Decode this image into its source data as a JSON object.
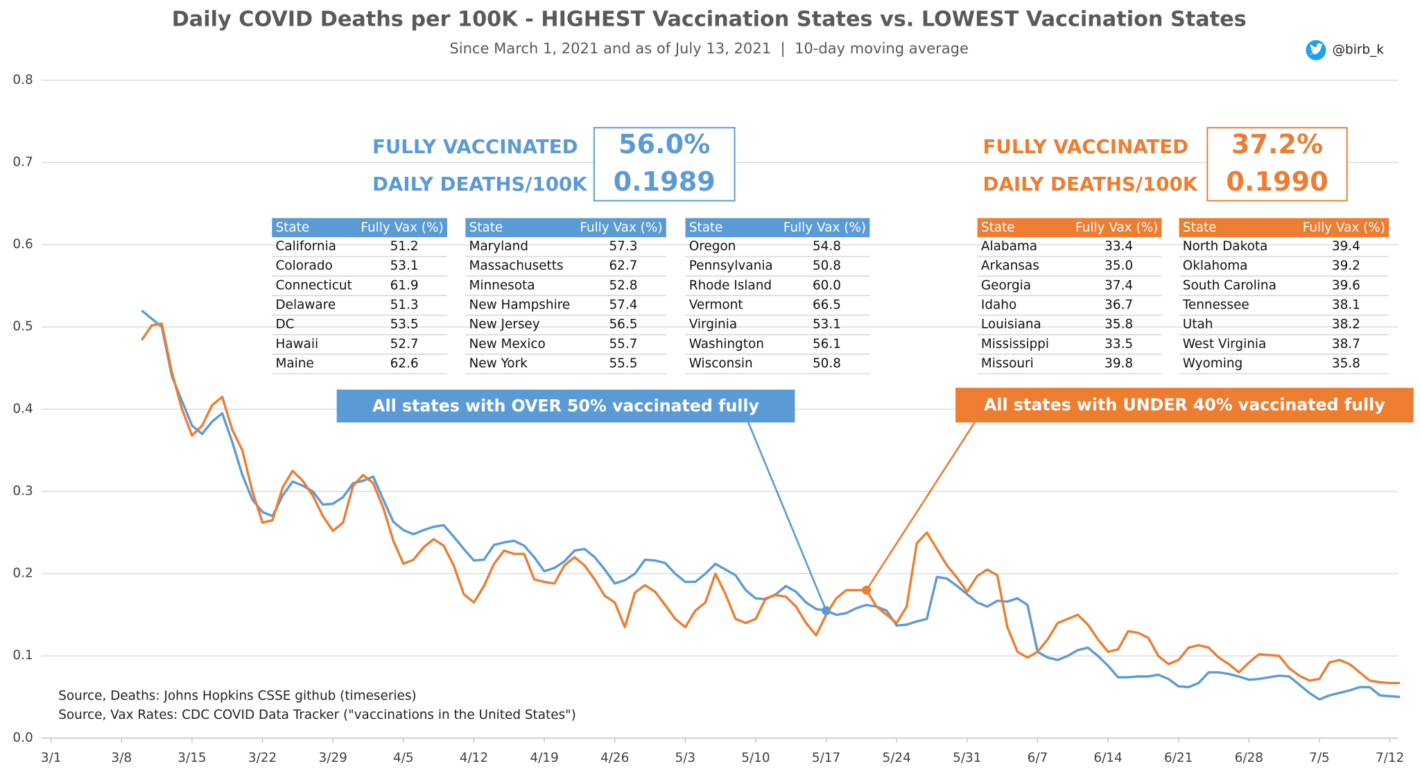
{
  "chart_data": {
    "type": "line",
    "title": "Daily COVID Deaths per 100K - HIGHEST Vaccination States vs. LOWEST Vaccination States",
    "subtitle": "Since March 1, 2021 and as of July 13, 2021  |  10-day moving average",
    "handle": "@birb_k",
    "sources": [
      "Source, Deaths: Johns Hopkins CSSE github (timeseries)",
      "Source, Vax Rates: CDC COVID Data Tracker (\"vaccinations in the United States\")"
    ],
    "ylim": [
      0,
      0.8
    ],
    "yticks": [
      {
        "value": 0,
        "label": "0.0"
      },
      0.1,
      0.2,
      0.3,
      0.4,
      0.5,
      0.6,
      0.7,
      0.8
    ],
    "grid": true,
    "categories": [
      "3/1",
      null,
      null,
      null,
      null,
      null,
      null,
      "3/8",
      null,
      null,
      null,
      null,
      null,
      null,
      "3/15",
      null,
      null,
      null,
      null,
      null,
      null,
      "3/22",
      null,
      null,
      null,
      null,
      null,
      null,
      "3/29",
      null,
      null,
      null,
      null,
      null,
      null,
      "4/5",
      null,
      null,
      null,
      null,
      null,
      null,
      "4/12",
      null,
      null,
      null,
      null,
      null,
      null,
      "4/19",
      null,
      null,
      null,
      null,
      null,
      null,
      "4/26",
      null,
      null,
      null,
      null,
      null,
      null,
      "5/3",
      null,
      null,
      null,
      null,
      null,
      null,
      "5/10",
      null,
      null,
      null,
      null,
      null,
      null,
      "5/17",
      null,
      null,
      null,
      null,
      null,
      null,
      "5/24",
      null,
      null,
      null,
      null,
      null,
      null,
      "5/31",
      null,
      null,
      null,
      null,
      null,
      null,
      "6/7",
      null,
      null,
      null,
      null,
      null,
      null,
      "6/14",
      null,
      null,
      null,
      null,
      null,
      null,
      "6/21",
      null,
      null,
      null,
      null,
      null,
      null,
      "6/28",
      null,
      null,
      null,
      null,
      null,
      null,
      "7/5",
      null,
      null,
      null,
      null,
      null,
      null,
      "7/12",
      null
    ],
    "series": [
      {
        "name": "All states with OVER 50% vaccinated fully",
        "color": "#5b9bd5",
        "values": [
          null,
          null,
          null,
          null,
          null,
          null,
          null,
          null,
          null,
          0.52,
          0.51,
          0.5,
          0.44,
          0.41,
          0.38,
          0.37,
          0.385,
          0.395,
          0.36,
          0.32,
          0.29,
          0.275,
          0.27,
          0.295,
          0.312,
          0.307,
          0.3,
          0.284,
          0.285,
          0.293,
          0.31,
          0.313,
          0.318,
          0.29,
          0.263,
          0.253,
          0.248,
          0.253,
          0.257,
          0.259,
          0.245,
          0.23,
          0.216,
          0.217,
          0.235,
          0.238,
          0.24,
          0.234,
          0.22,
          0.203,
          0.207,
          0.215,
          0.228,
          0.23,
          0.22,
          0.205,
          0.188,
          0.192,
          0.2,
          0.217,
          0.216,
          0.213,
          0.2,
          0.19,
          0.19,
          0.2,
          0.212,
          0.205,
          0.198,
          0.18,
          0.17,
          0.169,
          0.175,
          0.185,
          0.178,
          0.165,
          0.157,
          0.155,
          0.15,
          0.152,
          0.158,
          0.162,
          0.16,
          0.155,
          0.137,
          0.138,
          0.142,
          0.145,
          0.196,
          0.194,
          0.185,
          0.175,
          0.165,
          0.16,
          0.167,
          0.166,
          0.17,
          0.162,
          0.105,
          0.098,
          0.095,
          0.1,
          0.107,
          0.11,
          0.1,
          0.088,
          0.074,
          0.074,
          0.075,
          0.075,
          0.077,
          0.072,
          0.063,
          0.062,
          0.067,
          0.08,
          0.08,
          0.078,
          0.075,
          0.071,
          0.072,
          0.074,
          0.076,
          0.075,
          0.065,
          0.055,
          0.047,
          0.052,
          0.055,
          0.058,
          0.062,
          0.062,
          0.052,
          0.051,
          0.05
        ]
      },
      {
        "name": "All states with UNDER 40% vaccinated fully",
        "color": "#ed7d31",
        "values": [
          null,
          null,
          null,
          null,
          null,
          null,
          null,
          null,
          null,
          0.484,
          0.502,
          0.504,
          0.445,
          0.4,
          0.368,
          0.38,
          0.405,
          0.415,
          0.375,
          0.35,
          0.3,
          0.262,
          0.265,
          0.305,
          0.325,
          0.313,
          0.295,
          0.27,
          0.252,
          0.262,
          0.307,
          0.32,
          0.31,
          0.28,
          0.24,
          0.212,
          0.217,
          0.232,
          0.242,
          0.234,
          0.21,
          0.175,
          0.165,
          0.185,
          0.212,
          0.228,
          0.224,
          0.224,
          0.193,
          0.19,
          0.188,
          0.21,
          0.22,
          0.21,
          0.193,
          0.173,
          0.165,
          0.135,
          0.177,
          0.186,
          0.178,
          0.162,
          0.145,
          0.135,
          0.155,
          0.165,
          0.2,
          0.175,
          0.145,
          0.14,
          0.145,
          0.17,
          0.174,
          0.172,
          0.16,
          0.14,
          0.125,
          0.15,
          0.17,
          0.18,
          0.18,
          0.18,
          0.16,
          0.15,
          0.14,
          0.16,
          0.237,
          0.25,
          0.23,
          0.21,
          0.195,
          0.178,
          0.197,
          0.205,
          0.198,
          0.135,
          0.105,
          0.098,
          0.105,
          0.12,
          0.14,
          0.145,
          0.15,
          0.138,
          0.12,
          0.105,
          0.108,
          0.13,
          0.128,
          0.122,
          0.1,
          0.09,
          0.095,
          0.11,
          0.113,
          0.11,
          0.098,
          0.09,
          0.08,
          0.092,
          0.102,
          0.101,
          0.1,
          0.085,
          0.076,
          0.07,
          0.072,
          0.092,
          0.095,
          0.09,
          0.08,
          0.07,
          0.068,
          0.067,
          0.067
        ]
      }
    ],
    "panels": [
      {
        "summary": {
          "vax_label": "FULLY VACCINATED",
          "vax_value": "56.0%",
          "deaths_label": "DAILY DEATHS/100K",
          "deaths_value": "0.1989"
        },
        "tables": [
          {
            "columns": [
              "State",
              "Fully Vax (%)"
            ],
            "rows": [
              [
                "California",
                "51.2"
              ],
              [
                "Colorado",
                "53.1"
              ],
              [
                "Connecticut",
                "61.9"
              ],
              [
                "Delaware",
                "51.3"
              ],
              [
                "DC",
                "53.5"
              ],
              [
                "Hawaii",
                "52.7"
              ],
              [
                "Maine",
                "62.6"
              ]
            ]
          },
          {
            "columns": [
              "State",
              "Fully Vax (%)"
            ],
            "rows": [
              [
                "Maryland",
                "57.3"
              ],
              [
                "Massachusetts",
                "62.7"
              ],
              [
                "Minnesota",
                "52.8"
              ],
              [
                "New Hampshire",
                "57.4"
              ],
              [
                "New Jersey",
                "56.5"
              ],
              [
                "New Mexico",
                "55.7"
              ],
              [
                "New York",
                "55.5"
              ]
            ]
          },
          {
            "columns": [
              "State",
              "Fully Vax (%)"
            ],
            "rows": [
              [
                "Oregon",
                "54.8"
              ],
              [
                "Pennsylvania",
                "50.8"
              ],
              [
                "Rhode Island",
                "60.0"
              ],
              [
                "Vermont",
                "66.5"
              ],
              [
                "Virginia",
                "53.1"
              ],
              [
                "Washington",
                "56.1"
              ],
              [
                "Wisconsin",
                "50.8"
              ]
            ]
          }
        ]
      },
      {
        "summary": {
          "vax_label": "FULLY VACCINATED",
          "vax_value": "37.2%",
          "deaths_label": "DAILY DEATHS/100K",
          "deaths_value": "0.1990"
        },
        "tables": [
          {
            "columns": [
              "State",
              "Fully Vax (%)"
            ],
            "rows": [
              [
                "Alabama",
                "33.4"
              ],
              [
                "Arkansas",
                "35.0"
              ],
              [
                "Georgia",
                "37.4"
              ],
              [
                "Idaho",
                "36.7"
              ],
              [
                "Louisiana",
                "35.8"
              ],
              [
                "Mississippi",
                "33.5"
              ],
              [
                "Missouri",
                "39.8"
              ]
            ]
          },
          {
            "columns": [
              "State",
              "Fully Vax (%)"
            ],
            "rows": [
              [
                "North Dakota",
                "39.4"
              ],
              [
                "Oklahoma",
                "39.2"
              ],
              [
                "South Carolina",
                "39.6"
              ],
              [
                "Tennessee",
                "38.1"
              ],
              [
                "Utah",
                "38.2"
              ],
              [
                "West Virginia",
                "38.7"
              ],
              [
                "Wyoming",
                "35.8"
              ]
            ]
          }
        ]
      }
    ]
  }
}
